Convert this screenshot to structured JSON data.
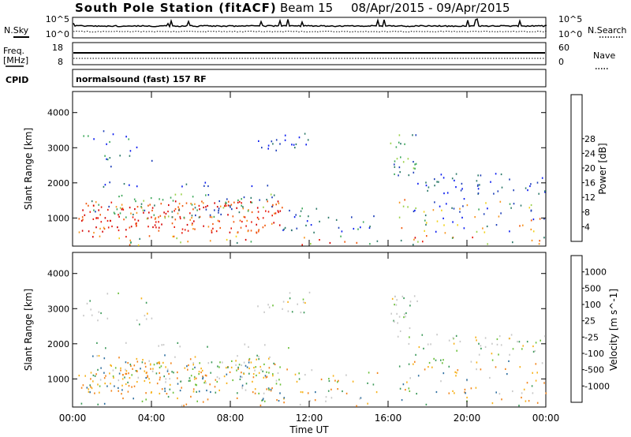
{
  "header": {
    "station": "South Pole Station (fitACF)",
    "beam": "Beam 15",
    "date_range": "08/Apr/2015 - 09/Apr/2015"
  },
  "side_labels": {
    "nsky": "N.Sky",
    "nsearch": "N.Search",
    "freq_line1": "Freq.",
    "freq_line2": "[MHz]",
    "nave": "Nave",
    "cpid": "CPID",
    "cpid_value": "normalsound (fast) 157 RF"
  },
  "strip_ticks": {
    "noise_left_top": "10^5",
    "noise_left_bottom": "10^0",
    "noise_right_top": "10^5",
    "noise_right_bottom": "10^0",
    "freq_top": "18",
    "freq_bottom": "8",
    "nave_top": "60",
    "nave_bottom": "0"
  },
  "chart_data": [
    {
      "type": "heatmap",
      "panel": "power",
      "ylabel": "Slant Range [km]",
      "xlabel": "Time UT",
      "x_ticks": [
        "00:00",
        "04:00",
        "08:00",
        "12:00",
        "16:00",
        "20:00",
        "00:00"
      ],
      "y_ticks": [
        1000,
        2000,
        3000,
        4000
      ],
      "ylim": [
        200,
        4600
      ],
      "colorbar": {
        "label": "Power [dB]",
        "ticks": [
          4,
          8,
          12,
          16,
          20,
          24,
          28
        ],
        "colors": [
          "#0a1cf0",
          "#1e3fb8",
          "#2e7a6a",
          "#3da85a",
          "#9bd24a",
          "#f2d21a",
          "#f7941d",
          "#f25a0c",
          "#e81b0c",
          "#d40000"
        ]
      }
    },
    {
      "type": "heatmap",
      "panel": "velocity",
      "ylabel": "Slant Range [km]",
      "xlabel": "Time UT",
      "x_ticks": [
        "00:00",
        "04:00",
        "08:00",
        "12:00",
        "16:00",
        "20:00",
        "00:00"
      ],
      "y_ticks": [
        1000,
        2000,
        3000,
        4000
      ],
      "ylim": [
        200,
        4600
      ],
      "colorbar": {
        "label": "Velocity [m s^-1]",
        "ticks": [
          "1000",
          "500",
          "100",
          "25",
          "-25",
          "-100",
          "-500",
          "-1000"
        ],
        "colors": [
          "#1f3fb0",
          "#2e6fa0",
          "#3d9a5a",
          "#6cc03a",
          "#c8c8c8",
          "#f7b21a",
          "#f2841a",
          "#f25a0c",
          "#e81b0c"
        ]
      }
    }
  ],
  "xaxis": {
    "label": "Time UT"
  }
}
